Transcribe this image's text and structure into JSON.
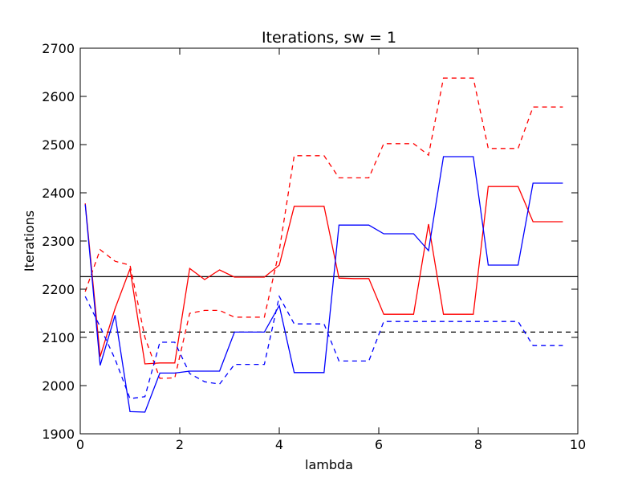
{
  "chart_data": {
    "type": "line",
    "title": "Iterations, sw = 1",
    "xlabel": "lambda",
    "ylabel": "Iterations",
    "xlim": [
      0,
      10
    ],
    "ylim": [
      1900,
      2700
    ],
    "xticks": [
      0,
      2,
      4,
      6,
      8,
      10
    ],
    "yticks": [
      1900,
      2000,
      2100,
      2200,
      2300,
      2400,
      2500,
      2600,
      2700
    ],
    "grid": false,
    "legend": "none",
    "series": [
      {
        "color": "#ff0000",
        "style": "solid",
        "x": [
          0.1,
          0.4,
          0.7,
          1.0,
          1.3,
          1.6,
          1.9,
          2.2,
          2.5,
          2.8,
          3.1,
          3.4,
          3.7,
          4.0,
          4.3,
          4.6,
          4.9,
          5.2,
          5.5,
          5.8,
          6.1,
          6.4,
          6.7,
          7.0,
          7.3,
          7.6,
          7.9,
          8.2,
          8.5,
          8.8,
          9.1,
          9.4,
          9.7
        ],
        "values": [
          2378,
          2060,
          2160,
          2242,
          2045,
          2047,
          2047,
          2243,
          2220,
          2240,
          2225,
          2225,
          2225,
          2250,
          2372,
          2372,
          2372,
          2223,
          2222,
          2222,
          2148,
          2148,
          2148,
          2335,
          2148,
          2148,
          2148,
          2413,
          2413,
          2413,
          2340,
          2340,
          2340
        ]
      },
      {
        "color": "#ff0000",
        "style": "dashed",
        "x": [
          0.1,
          0.4,
          0.7,
          1.0,
          1.3,
          1.6,
          1.9,
          2.2,
          2.5,
          2.8,
          3.1,
          3.4,
          3.7,
          4.0,
          4.3,
          4.6,
          4.9,
          5.2,
          5.5,
          5.8,
          6.1,
          6.4,
          6.7,
          7.0,
          7.3,
          7.6,
          7.9,
          8.2,
          8.5,
          8.8,
          9.1,
          9.4,
          9.7
        ],
        "values": [
          2195,
          2282,
          2258,
          2250,
          2100,
          2015,
          2016,
          2150,
          2156,
          2156,
          2142,
          2142,
          2142,
          2280,
          2477,
          2477,
          2477,
          2431,
          2431,
          2431,
          2502,
          2502,
          2502,
          2478,
          2638,
          2638,
          2638,
          2492,
          2492,
          2492,
          2578,
          2578,
          2578
        ]
      },
      {
        "color": "#0000ff",
        "style": "solid",
        "x": [
          0.1,
          0.4,
          0.7,
          1.0,
          1.3,
          1.6,
          1.9,
          2.2,
          2.5,
          2.8,
          3.1,
          3.4,
          3.7,
          4.0,
          4.3,
          4.6,
          4.9,
          5.2,
          5.5,
          5.8,
          6.1,
          6.4,
          6.7,
          7.0,
          7.3,
          7.6,
          7.9,
          8.2,
          8.5,
          8.8,
          9.1,
          9.4,
          9.7
        ],
        "values": [
          2376,
          2042,
          2146,
          1946,
          1945,
          2026,
          2026,
          2030,
          2030,
          2030,
          2111,
          2111,
          2111,
          2166,
          2027,
          2027,
          2027,
          2333,
          2333,
          2333,
          2315,
          2315,
          2315,
          2280,
          2475,
          2475,
          2475,
          2250,
          2250,
          2250,
          2420,
          2420,
          2420
        ]
      },
      {
        "color": "#0000ff",
        "style": "dashed",
        "x": [
          0.1,
          0.4,
          0.7,
          1.0,
          1.3,
          1.6,
          1.9,
          2.2,
          2.5,
          2.8,
          3.1,
          3.4,
          3.7,
          4.0,
          4.3,
          4.6,
          4.9,
          5.2,
          5.5,
          5.8,
          6.1,
          6.4,
          6.7,
          7.0,
          7.3,
          7.6,
          7.9,
          8.2,
          8.5,
          8.8,
          9.1,
          9.4,
          9.7
        ],
        "values": [
          2185,
          2122,
          2055,
          1973,
          1977,
          2090,
          2090,
          2025,
          2008,
          2003,
          2044,
          2044,
          2044,
          2185,
          2128,
          2128,
          2128,
          2051,
          2051,
          2051,
          2133,
          2133,
          2133,
          2133,
          2133,
          2133,
          2133,
          2133,
          2133,
          2133,
          2083,
          2083,
          2083
        ]
      }
    ],
    "hlines": [
      {
        "y": 2226,
        "color": "#000000",
        "style": "solid"
      },
      {
        "y": 2111,
        "color": "#000000",
        "style": "dashed"
      }
    ]
  }
}
